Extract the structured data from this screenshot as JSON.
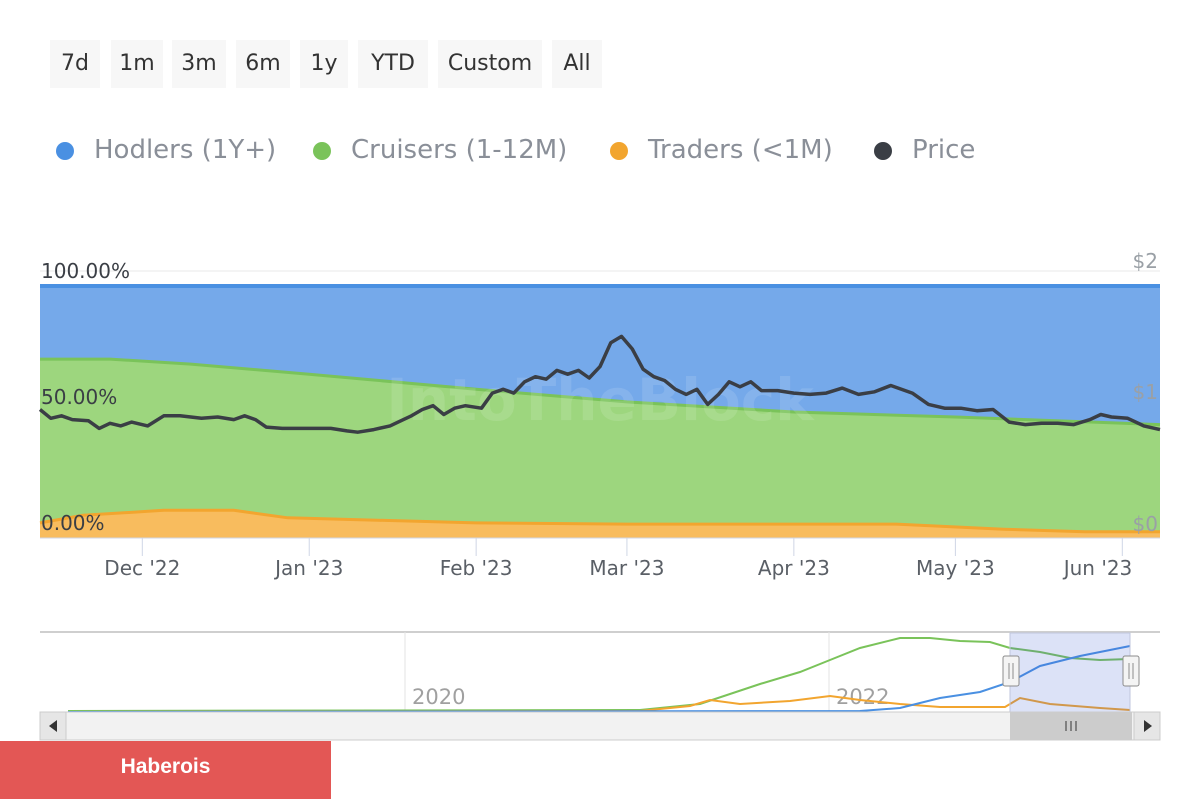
{
  "range_buttons": [
    "7d",
    "1m",
    "3m",
    "6m",
    "1y",
    "YTD",
    "Custom",
    "All"
  ],
  "brand_label": "Haberois",
  "watermark": "IntoTheBlock",
  "chart_data": {
    "type": "area",
    "stacked": true,
    "series": [
      {
        "name": "Hodlers (1Y+)",
        "color": "#4a90e2",
        "fill": "#75a9ea"
      },
      {
        "name": "Cruisers (1-12M)",
        "color": "#7ac35a",
        "fill": "#9dd67e"
      },
      {
        "name": "Traders (<1M)",
        "color": "#f2a52f",
        "fill": "#f8bc5e"
      },
      {
        "name": "Price",
        "color": "#3a3e45"
      }
    ],
    "left_axis": {
      "ticks": [
        "100.00%",
        "50.00%",
        "0.00%"
      ],
      "values": [
        100,
        50,
        0
      ]
    },
    "right_axis": {
      "ticks": [
        "$2",
        "$1",
        "$0"
      ],
      "values": [
        2,
        1,
        0
      ]
    },
    "x_ticks": [
      "Dec '22",
      "Jan '23",
      "Feb '23",
      "Mar '23",
      "Apr '23",
      "May '23",
      "Jun '23"
    ],
    "x_tick_dates": [
      "2022-12-01",
      "2023-01-01",
      "2023-02-01",
      "2023-03-01",
      "2023-04-01",
      "2023-05-01",
      "2023-06-01"
    ],
    "x_range": [
      "2022-11-12",
      "2023-06-08"
    ],
    "traders_pct": [
      [
        "2022-11-12",
        6
      ],
      [
        "2022-11-20",
        9
      ],
      [
        "2022-12-05",
        11
      ],
      [
        "2022-12-18",
        11
      ],
      [
        "2022-12-28",
        8
      ],
      [
        "2023-01-15",
        7
      ],
      [
        "2023-02-01",
        6
      ],
      [
        "2023-03-01",
        5.5
      ],
      [
        "2023-04-01",
        5.5
      ],
      [
        "2023-04-20",
        5.5
      ],
      [
        "2023-05-10",
        3.5
      ],
      [
        "2023-05-25",
        2.5
      ],
      [
        "2023-06-08",
        2.5
      ]
    ],
    "traders_cruisers_pct": [
      [
        "2022-11-12",
        71
      ],
      [
        "2022-11-25",
        71
      ],
      [
        "2022-12-10",
        69
      ],
      [
        "2023-01-01",
        65
      ],
      [
        "2023-02-01",
        59
      ],
      [
        "2023-03-01",
        54
      ],
      [
        "2023-04-01",
        50
      ],
      [
        "2023-05-01",
        48
      ],
      [
        "2023-06-08",
        45
      ]
    ],
    "price": [
      [
        "2022-11-12",
        1.02
      ],
      [
        "2022-11-14",
        0.95
      ],
      [
        "2022-11-16",
        0.97
      ],
      [
        "2022-11-18",
        0.94
      ],
      [
        "2022-11-21",
        0.93
      ],
      [
        "2022-11-23",
        0.87
      ],
      [
        "2022-11-25",
        0.91
      ],
      [
        "2022-11-27",
        0.89
      ],
      [
        "2022-11-29",
        0.92
      ],
      [
        "2022-12-02",
        0.89
      ],
      [
        "2022-12-05",
        0.97
      ],
      [
        "2022-12-08",
        0.97
      ],
      [
        "2022-12-12",
        0.95
      ],
      [
        "2022-12-15",
        0.96
      ],
      [
        "2022-12-18",
        0.94
      ],
      [
        "2022-12-20",
        0.97
      ],
      [
        "2022-12-22",
        0.94
      ],
      [
        "2022-12-24",
        0.88
      ],
      [
        "2022-12-27",
        0.87
      ],
      [
        "2022-12-30",
        0.87
      ],
      [
        "2023-01-02",
        0.87
      ],
      [
        "2023-01-05",
        0.87
      ],
      [
        "2023-01-08",
        0.85
      ],
      [
        "2023-01-10",
        0.84
      ],
      [
        "2023-01-13",
        0.86
      ],
      [
        "2023-01-16",
        0.89
      ],
      [
        "2023-01-18",
        0.93
      ],
      [
        "2023-01-20",
        0.97
      ],
      [
        "2023-01-22",
        1.02
      ],
      [
        "2023-01-24",
        1.05
      ],
      [
        "2023-01-26",
        0.98
      ],
      [
        "2023-01-28",
        1.03
      ],
      [
        "2023-01-30",
        1.05
      ],
      [
        "2023-02-02",
        1.03
      ],
      [
        "2023-02-04",
        1.15
      ],
      [
        "2023-02-06",
        1.18
      ],
      [
        "2023-02-08",
        1.15
      ],
      [
        "2023-02-10",
        1.24
      ],
      [
        "2023-02-12",
        1.28
      ],
      [
        "2023-02-14",
        1.26
      ],
      [
        "2023-02-16",
        1.33
      ],
      [
        "2023-02-18",
        1.3
      ],
      [
        "2023-02-20",
        1.33
      ],
      [
        "2023-02-22",
        1.27
      ],
      [
        "2023-02-24",
        1.36
      ],
      [
        "2023-02-26",
        1.55
      ],
      [
        "2023-02-28",
        1.6
      ],
      [
        "2023-03-02",
        1.5
      ],
      [
        "2023-03-04",
        1.34
      ],
      [
        "2023-03-06",
        1.28
      ],
      [
        "2023-03-08",
        1.25
      ],
      [
        "2023-03-10",
        1.18
      ],
      [
        "2023-03-12",
        1.14
      ],
      [
        "2023-03-14",
        1.18
      ],
      [
        "2023-03-16",
        1.06
      ],
      [
        "2023-03-18",
        1.14
      ],
      [
        "2023-03-20",
        1.24
      ],
      [
        "2023-03-22",
        1.2
      ],
      [
        "2023-03-24",
        1.24
      ],
      [
        "2023-03-26",
        1.17
      ],
      [
        "2023-03-29",
        1.17
      ],
      [
        "2023-04-01",
        1.15
      ],
      [
        "2023-04-04",
        1.14
      ],
      [
        "2023-04-07",
        1.15
      ],
      [
        "2023-04-10",
        1.19
      ],
      [
        "2023-04-13",
        1.14
      ],
      [
        "2023-04-16",
        1.16
      ],
      [
        "2023-04-19",
        1.21
      ],
      [
        "2023-04-23",
        1.15
      ],
      [
        "2023-04-26",
        1.06
      ],
      [
        "2023-04-29",
        1.03
      ],
      [
        "2023-05-02",
        1.03
      ],
      [
        "2023-05-05",
        1.01
      ],
      [
        "2023-05-08",
        1.02
      ],
      [
        "2023-05-11",
        0.92
      ],
      [
        "2023-05-14",
        0.9
      ],
      [
        "2023-05-17",
        0.91
      ],
      [
        "2023-05-20",
        0.91
      ],
      [
        "2023-05-23",
        0.9
      ],
      [
        "2023-05-26",
        0.94
      ],
      [
        "2023-05-28",
        0.98
      ],
      [
        "2023-05-30",
        0.96
      ],
      [
        "2023-06-02",
        0.95
      ],
      [
        "2023-06-05",
        0.89
      ],
      [
        "2023-06-08",
        0.86
      ]
    ]
  },
  "navigator": {
    "year_labels": [
      "2020",
      "2022"
    ]
  }
}
